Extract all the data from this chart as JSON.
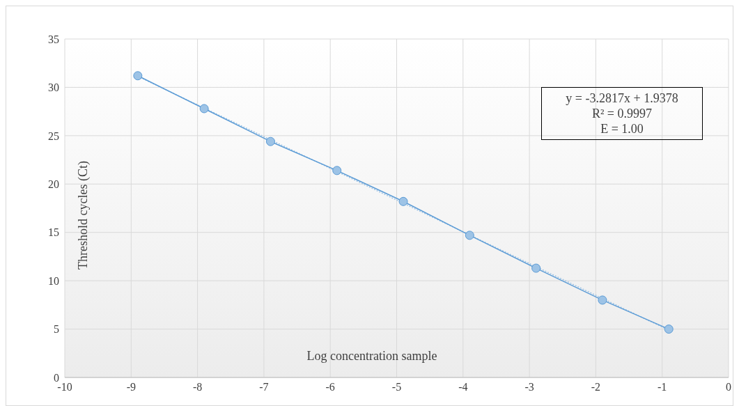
{
  "chart_data": {
    "type": "line",
    "xlabel": "Log concentration sample",
    "ylabel": "Threshold cycles (Ct)",
    "x": [
      -8.9,
      -7.9,
      -6.9,
      -5.9,
      -4.9,
      -3.9,
      -2.9,
      -1.9,
      -0.9
    ],
    "series": [
      {
        "color": "#5b9bd5",
        "marker": "circle",
        "line_style": "solid",
        "values": [
          31.2,
          27.8,
          24.4,
          21.4,
          18.2,
          14.7,
          11.3,
          8.0,
          5.0
        ]
      },
      {
        "color": "#9dc3e6",
        "marker": "none",
        "line_style": "dotted",
        "x": [
          -8.9,
          -0.9
        ],
        "values": [
          31.14,
          4.89
        ]
      }
    ],
    "annotations": [
      "y = -3.2817x + 1.9378\nR² = 0.9997\nE = 1.00"
    ],
    "xlim": [
      -10,
      0
    ],
    "xticks": [
      -10,
      -9,
      -8,
      -7,
      -6,
      -5,
      -4,
      -3,
      -2,
      -1,
      0
    ],
    "ylim": [
      0,
      35
    ],
    "yticks": [
      0,
      5,
      10,
      15,
      20,
      25,
      30,
      35
    ],
    "grid": true
  }
}
